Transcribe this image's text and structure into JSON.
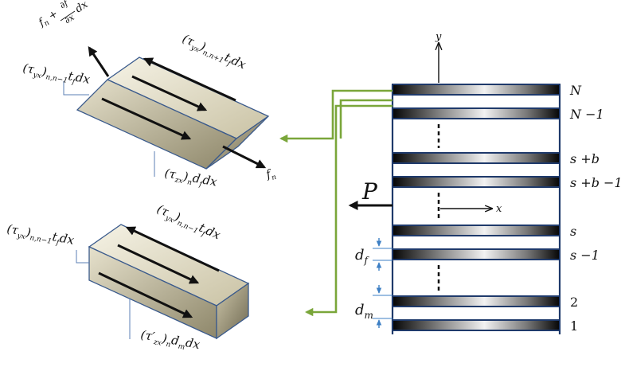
{
  "colors": {
    "stack_outline": "#1f3a6b",
    "leader_line": "#7aa63a",
    "force_arrow": "#111111",
    "element_light": "#f3f0e2",
    "element_dark": "#8f8866",
    "dim_arrow": "#3d7fc4"
  },
  "layer_labels": [
    "N",
    "N −1",
    "s +b",
    "s +b −1",
    "s",
    "s −1",
    "2",
    "1"
  ],
  "axes": {
    "y": "y",
    "x": "x"
  },
  "load": {
    "label": "P"
  },
  "dimensions": {
    "d_f": {
      "symbol": "d",
      "sub": "f"
    },
    "d_m": {
      "symbol": "d",
      "sub": "m"
    }
  },
  "upper_element": {
    "axial_plus": {
      "prefix": "f",
      "prefix_sub": "n",
      "plus": " + ",
      "numerator": "∂f",
      "denominator": "∂x",
      "suffix": "dx"
    },
    "axial": {
      "base": "f",
      "sub": "n"
    },
    "top_shear": {
      "base": "(τ",
      "base_sub": "yx",
      "close": ")",
      "close_sub": "n,n+1",
      "t": "t",
      "t_sub": "f",
      "suffix": "dx"
    },
    "side_shear": {
      "base": "(τ",
      "base_sub": "yx",
      "close": ")",
      "close_sub": "n,n−1",
      "t": "t",
      "t_sub": "f",
      "suffix": "dx"
    },
    "zx_shear": {
      "base": "(τ",
      "base_sub": "zx",
      "close": ")",
      "close_sub": "n",
      "t": "d",
      "t_sub": "f",
      "suffix": "dx"
    }
  },
  "lower_element": {
    "top_shear": {
      "base": "(τ",
      "base_sub": "yx",
      "close": ")",
      "close_sub": "n,n−1",
      "t": "t",
      "t_sub": "f",
      "suffix": "dx"
    },
    "side_shear": {
      "base": "(τ",
      "base_sub": "yx",
      "close": ")",
      "close_sub": "n,n−1",
      "t": "t",
      "t_sub": "f",
      "suffix": "dx"
    },
    "zx_shear": {
      "base": "(τ′",
      "base_sub": "zx",
      "close": ")",
      "close_sub": "n",
      "t": "d",
      "t_sub": "m",
      "suffix": "dx"
    }
  }
}
